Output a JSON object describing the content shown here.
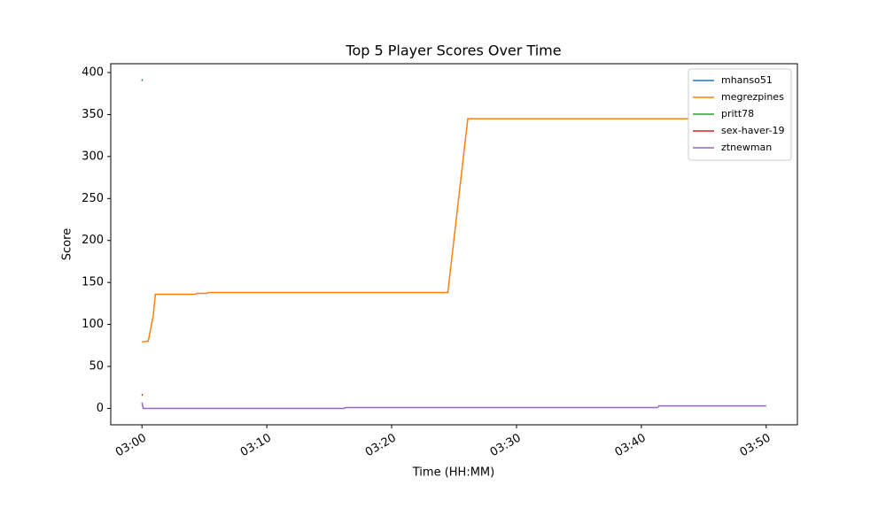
{
  "chart_data": {
    "type": "line",
    "title": "Top 5 Player Scores Over Time",
    "x_label": "Time (HH:MM)",
    "y_label": "Score",
    "series": [
      {
        "name": "mhanso51",
        "color": "#1f77b4",
        "x": [
          0,
          0.03
        ],
        "values": [
          390,
          392
        ]
      },
      {
        "name": "megrezpines",
        "color": "#ff7f0e",
        "x": [
          0,
          0.4,
          0.5,
          0.7,
          0.9,
          1.0,
          1.07,
          4.3,
          4.4,
          5.2,
          5.3,
          24.5,
          26.1,
          50
        ],
        "values": [
          79,
          80,
          80,
          95,
          110,
          125,
          136,
          136,
          137,
          137,
          138,
          138,
          345,
          345
        ]
      },
      {
        "name": "pritt78",
        "color": "#2ca02c",
        "x": [
          0,
          0.05
        ],
        "values": [
          15,
          16
        ]
      },
      {
        "name": "sex-haver-19",
        "color": "#d62728",
        "x": [
          0,
          0.05
        ],
        "values": [
          16,
          17
        ]
      },
      {
        "name": "ztnewman",
        "color": "#9467bd",
        "x": [
          0,
          0.1,
          16.2,
          16.3,
          41.3,
          41.4,
          50
        ],
        "values": [
          7,
          0,
          0,
          1,
          1,
          3,
          3
        ]
      }
    ],
    "xlim": [
      -2.5,
      52.5
    ],
    "xticks": [
      {
        "value": 0,
        "label": "03:00"
      },
      {
        "value": 10,
        "label": "03:10"
      },
      {
        "value": 20,
        "label": "03:20"
      },
      {
        "value": 30,
        "label": "03:30"
      },
      {
        "value": 40,
        "label": "03:40"
      },
      {
        "value": 50,
        "label": "03:50"
      }
    ],
    "ylim": [
      -19.55,
      410.55
    ],
    "yticks": [
      0,
      50,
      100,
      150,
      200,
      250,
      300,
      350,
      400
    ],
    "legend": "upper right"
  }
}
